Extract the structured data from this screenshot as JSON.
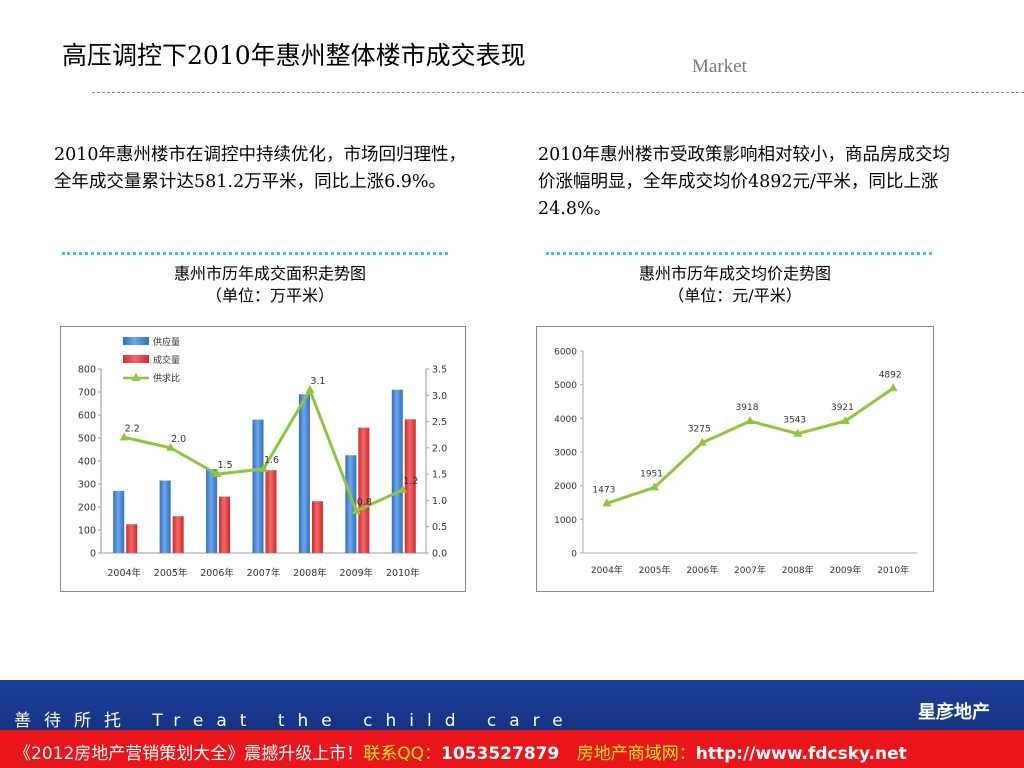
{
  "slide": {
    "title": "高压调控下2010年惠州整体楼市成交表现",
    "section_tag": "Market"
  },
  "intro": {
    "left": "2010年惠州楼市在调控中持续优化，市场回归理性，全年成交量累计达581.2万平米，同比上涨6.9%。",
    "right": "2010年惠州楼市受政策影响相对较小，商品房成交均价涨幅明显，全年成交均价4892元/平米，同比上涨24.8%。"
  },
  "captions": {
    "left_title": "惠州市历年成交面积走势图",
    "left_unit": "（单位：万平米）",
    "right_title": "惠州市历年成交均价走势图",
    "right_unit": "（单位：元/平米）"
  },
  "footer": {
    "slogan": "善待所托 Treat the child care",
    "logo": "星彦地产",
    "ad_part1": "《2012房地产营销策划大全》震撼升级上市！",
    "ad_part2": "联系QQ：",
    "ad_part3": "1053527879",
    "ad_part4": "房地产商域网：",
    "ad_part5": "http://www.fdcsky.net"
  },
  "colors": {
    "supply": "#2f6fc0",
    "deal": "#d02a2a",
    "ratio_line": "#8cc63f",
    "price_line": "#8cc63f",
    "divider": "#3cc6d8",
    "band": "#1d3f9a",
    "ad_bar": "#e8151b"
  },
  "chart_data": [
    {
      "type": "bar",
      "categories": [
        "2004年",
        "2005年",
        "2006年",
        "2007年",
        "2008年",
        "2009年",
        "2010年"
      ],
      "series": [
        {
          "name": "供应量",
          "type": "bar",
          "axis": "left",
          "values": [
            270,
            315,
            365,
            580,
            690,
            425,
            710
          ]
        },
        {
          "name": "成交量",
          "type": "bar",
          "axis": "left",
          "values": [
            125,
            160,
            245,
            360,
            225,
            545,
            581.2
          ]
        },
        {
          "name": "供求比",
          "type": "line",
          "axis": "right",
          "values": [
            2.2,
            2.0,
            1.5,
            1.6,
            3.1,
            0.8,
            1.2
          ],
          "labels": [
            "2.2",
            "2.0",
            "1.5",
            "1.6",
            "3.1",
            "0.8",
            "1.2"
          ]
        }
      ],
      "ylim": [
        0,
        800
      ],
      "yticks": [
        0,
        100,
        200,
        300,
        400,
        500,
        600,
        700,
        800
      ],
      "y2lim": [
        0,
        3.5
      ],
      "y2ticks": [
        "0.0",
        "0.5",
        "1.0",
        "1.5",
        "2.0",
        "2.5",
        "3.0",
        "3.5"
      ],
      "legend": "top-left",
      "grid": false
    },
    {
      "type": "line",
      "categories": [
        "2004年",
        "2005年",
        "2006年",
        "2007年",
        "2008年",
        "2009年",
        "2010年"
      ],
      "series": [
        {
          "values": [
            1473,
            1951,
            3275,
            3918,
            3543,
            3921,
            4892
          ],
          "labels": [
            "1473",
            "1951",
            "3275",
            "3918",
            "3543",
            "3921",
            "4892"
          ]
        }
      ],
      "ylim": [
        0,
        6000
      ],
      "yticks": [
        0,
        1000,
        2000,
        3000,
        4000,
        5000,
        6000
      ],
      "grid": false
    }
  ]
}
